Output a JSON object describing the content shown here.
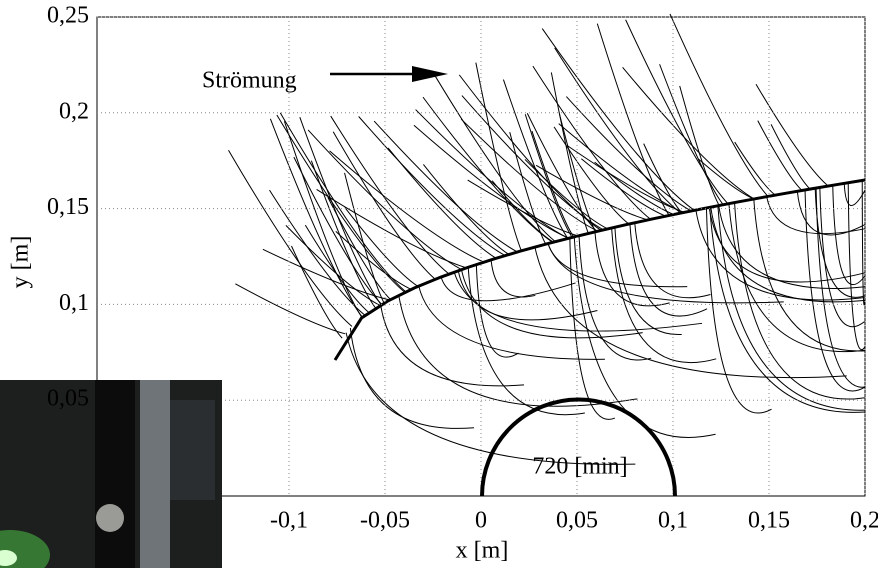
{
  "chart_data": {
    "type": "streamline",
    "xlabel": "x [m]",
    "ylabel": "y [m]",
    "annotations": [
      "Strömung",
      "720 [min]"
    ],
    "xlim": [
      -0.2,
      0.2
    ],
    "ylim": [
      0,
      0.25
    ],
    "xticks": [
      {
        "value": -0.1,
        "label": "-0,1"
      },
      {
        "value": -0.05,
        "label": "-0,05"
      },
      0,
      {
        "value": 0.05,
        "label": "0,05"
      },
      {
        "value": 0.1,
        "label": "0,1"
      },
      {
        "value": 0.15,
        "label": "0,15"
      },
      {
        "value": 0.2,
        "label": "0,2"
      }
    ],
    "yticks": [
      {
        "value": 0.05,
        "label": "0,05"
      },
      {
        "value": 0.1,
        "label": "0,1"
      },
      {
        "value": 0.15,
        "label": "0,15"
      },
      {
        "value": 0.2,
        "label": "0,2"
      },
      {
        "value": 0.25,
        "label": "0,25"
      }
    ],
    "grid": true,
    "color": "#000000"
  }
}
